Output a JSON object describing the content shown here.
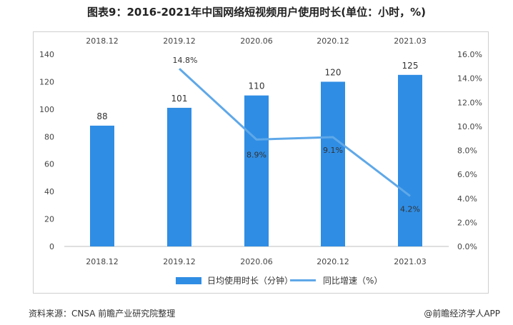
{
  "title": "图表9：2016-2021年中国网络短视频用户使用时长(单位：小时，%)",
  "source": "资料来源：CNSA 前瞻产业研究院整理",
  "brand": "@前瞻经济学人APP",
  "colors": {
    "bar": "#2f8de4",
    "line": "#5fa8e8"
  },
  "chart_data": {
    "type": "bar",
    "categories": [
      "2018.12",
      "2019.12",
      "2020.06",
      "2020.12",
      "2021.03"
    ],
    "series": [
      {
        "name": "日均使用时长（分钟）",
        "type": "bar",
        "values": [
          88,
          101,
          110,
          120,
          125
        ],
        "axis": "left"
      },
      {
        "name": "同比增速（%）",
        "type": "line",
        "values": [
          null,
          14.8,
          8.9,
          9.1,
          4.2
        ],
        "axis": "right"
      }
    ],
    "data_labels_bar": [
      "88",
      "101",
      "110",
      "120",
      "125"
    ],
    "data_labels_line": [
      null,
      "14.8%",
      "8.9%",
      "9.1%",
      "4.2%"
    ],
    "ylim_left": [
      0,
      140
    ],
    "yticks_left": [
      "0",
      "20",
      "40",
      "60",
      "80",
      "100",
      "120",
      "140"
    ],
    "ylim_right": [
      0,
      16
    ],
    "yticks_right": [
      "0.0%",
      "2.0%",
      "4.0%",
      "6.0%",
      "8.0%",
      "10.0%",
      "12.0%",
      "14.0%",
      "16.0%"
    ],
    "grid": false,
    "legend_position": "bottom"
  }
}
